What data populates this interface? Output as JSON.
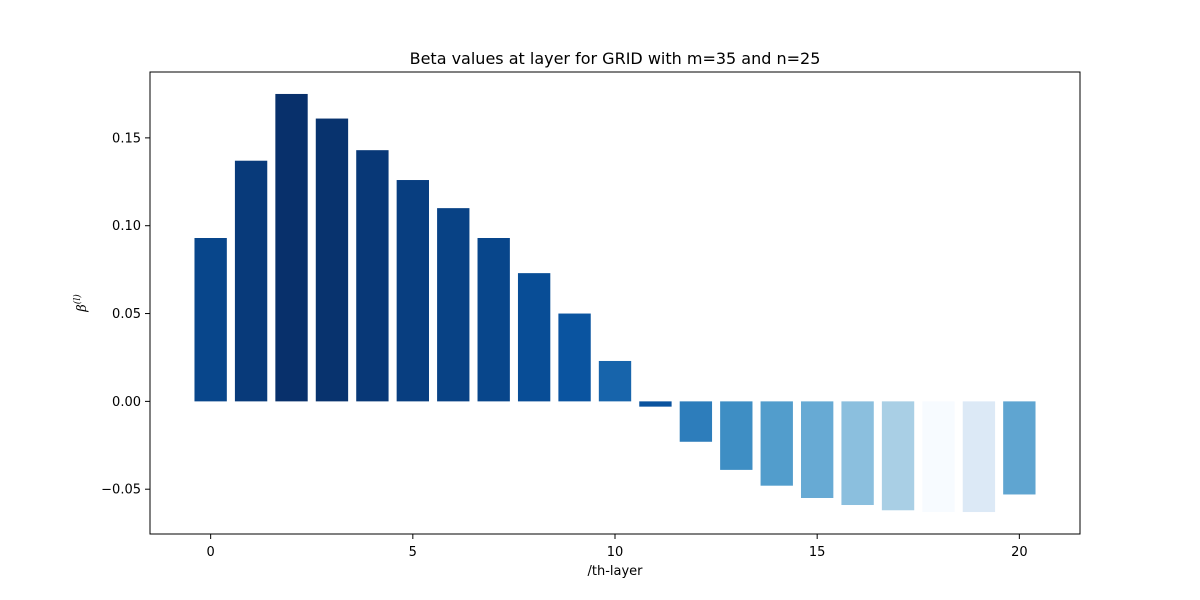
{
  "chart_data": {
    "type": "bar",
    "title": "Beta values at layer for GRID with m=35 and n=25",
    "xlabel": "/th-layer",
    "ylabel": "β(l)",
    "x": [
      0,
      1,
      2,
      3,
      4,
      5,
      6,
      7,
      8,
      9,
      10,
      11,
      12,
      13,
      14,
      15,
      16,
      17,
      18,
      19,
      20
    ],
    "values": [
      0.093,
      0.137,
      0.175,
      0.161,
      0.143,
      0.126,
      0.11,
      0.093,
      0.073,
      0.05,
      0.023,
      -0.003,
      -0.023,
      -0.039,
      -0.048,
      -0.055,
      -0.059,
      -0.062,
      -0.063,
      -0.063,
      -0.053
    ],
    "colors": [
      "#08468b",
      "#083a7a",
      "#08306b",
      "#08336e",
      "#083877",
      "#083e80",
      "#084285",
      "#08468b",
      "#084d96",
      "#0a54a0",
      "#1764ab",
      "#0a539e",
      "#2d7dbb",
      "#3e8ec4",
      "#529dcc",
      "#67aad4",
      "#8bbfde",
      "#a9cfe5",
      "#f7fbff",
      "#dce9f6",
      "#5fa5d1"
    ],
    "xticks": [
      0,
      5,
      10,
      15,
      20
    ],
    "xtick_labels": [
      "0",
      "5",
      "10",
      "15",
      "20"
    ],
    "yticks": [
      -0.05,
      0.0,
      0.05,
      0.1,
      0.15
    ],
    "ytick_labels": [
      "−0.05",
      "0.00",
      "0.05",
      "0.10",
      "0.15"
    ],
    "xlim": [
      -1.5,
      21.5
    ],
    "ylim": [
      -0.0755,
      0.1875
    ],
    "grid": false,
    "legend": "none"
  }
}
